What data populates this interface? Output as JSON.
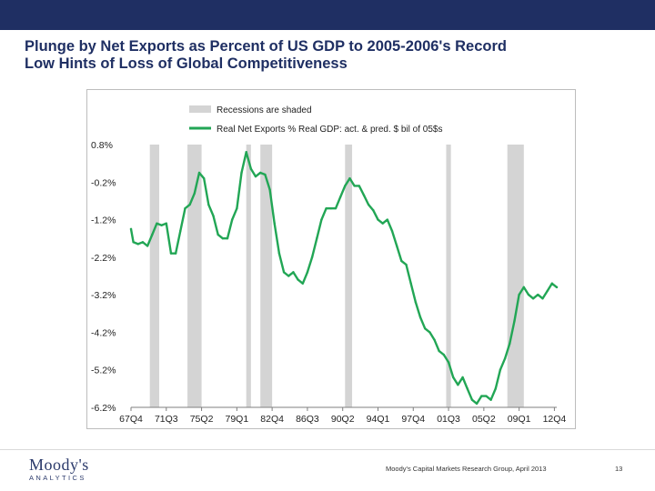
{
  "header": {
    "title_line1": "Plunge by Net Exports as Percent of US GDP to 2005-2006's Record",
    "title_line2": "Low Hints of Loss of Global Competitiveness"
  },
  "footer": {
    "logo_main": "Moody's",
    "logo_sub": "ANALYTICS",
    "source": "Moody's Capital Markets Research Group, April 2013",
    "page": "13"
  },
  "colors": {
    "brand_navy": "#1f2f63",
    "series_green": "#22a655",
    "recession_gray": "#d4d4d4"
  },
  "chart_data": {
    "type": "line",
    "title": "Plunge by Net Exports as Percent of US GDP to 2005-2006's Record Low Hints of Loss of Global Competitiveness",
    "xlabel": "",
    "ylabel": "",
    "x_domain": [
      1967.75,
      2013.0
    ],
    "ylim": [
      -6.2,
      0.8
    ],
    "yticks": [
      0.8,
      -0.2,
      -1.2,
      -2.2,
      -3.2,
      -4.2,
      -5.2,
      -6.2
    ],
    "ytick_labels": [
      "0.8%",
      "-0.2%",
      "-1.2%",
      "-2.2%",
      "-3.2%",
      "-4.2%",
      "-5.2%",
      "-6.2%"
    ],
    "xticks": [
      {
        "label": "67Q4",
        "x": 1967.75
      },
      {
        "label": "71Q3",
        "x": 1971.5
      },
      {
        "label": "75Q2",
        "x": 1975.25
      },
      {
        "label": "79Q1",
        "x": 1979.0
      },
      {
        "label": "82Q4",
        "x": 1982.75
      },
      {
        "label": "86Q3",
        "x": 1986.5
      },
      {
        "label": "90Q2",
        "x": 1990.25
      },
      {
        "label": "94Q1",
        "x": 1994.0
      },
      {
        "label": "97Q4",
        "x": 1997.75
      },
      {
        "label": "01Q3",
        "x": 2001.5
      },
      {
        "label": "05Q2",
        "x": 2005.25
      },
      {
        "label": "09Q1",
        "x": 2009.0
      },
      {
        "label": "12Q4",
        "x": 2012.75
      }
    ],
    "legend": [
      {
        "label": "Recessions are shaded",
        "kind": "band"
      },
      {
        "label": "Real Net Exports % Real GDP: act. & pred. $ bil of 05$s",
        "kind": "line"
      }
    ],
    "legend_position": "top-center",
    "recessions": [
      {
        "start": 1969.75,
        "end": 1970.75
      },
      {
        "start": 1973.75,
        "end": 1975.25
      },
      {
        "start": 1980.0,
        "end": 1980.5
      },
      {
        "start": 1981.5,
        "end": 1982.75
      },
      {
        "start": 1990.5,
        "end": 1991.25
      },
      {
        "start": 2001.25,
        "end": 2001.75
      },
      {
        "start": 2007.75,
        "end": 2009.5
      }
    ],
    "series": [
      {
        "name": "Real Net Exports % Real GDP: act. & pred. $ bil of 05$s",
        "x": [
          1967.75,
          1968.0,
          1968.5,
          1969.0,
          1969.5,
          1970.0,
          1970.5,
          1971.0,
          1971.5,
          1972.0,
          1972.5,
          1973.0,
          1973.5,
          1974.0,
          1974.5,
          1975.0,
          1975.5,
          1976.0,
          1976.5,
          1977.0,
          1977.5,
          1978.0,
          1978.5,
          1979.0,
          1979.5,
          1980.0,
          1980.5,
          1981.0,
          1981.5,
          1982.0,
          1982.5,
          1983.0,
          1983.5,
          1984.0,
          1984.5,
          1985.0,
          1985.5,
          1986.0,
          1986.5,
          1987.0,
          1987.5,
          1988.0,
          1988.5,
          1989.0,
          1989.5,
          1990.0,
          1990.5,
          1991.0,
          1991.5,
          1992.0,
          1992.5,
          1993.0,
          1993.5,
          1994.0,
          1994.5,
          1995.0,
          1995.5,
          1996.0,
          1996.5,
          1997.0,
          1997.5,
          1998.0,
          1998.5,
          1999.0,
          1999.5,
          2000.0,
          2000.5,
          2001.0,
          2001.5,
          2002.0,
          2002.5,
          2003.0,
          2003.5,
          2004.0,
          2004.5,
          2005.0,
          2005.5,
          2006.0,
          2006.5,
          2007.0,
          2007.5,
          2008.0,
          2008.5,
          2009.0,
          2009.5,
          2010.0,
          2010.5,
          2011.0,
          2011.5,
          2012.0,
          2012.5,
          2013.0
        ],
        "y": [
          -1.45,
          -1.8,
          -1.85,
          -1.8,
          -1.9,
          -1.6,
          -1.3,
          -1.35,
          -1.3,
          -2.1,
          -2.1,
          -1.5,
          -0.9,
          -0.8,
          -0.5,
          0.05,
          -0.1,
          -0.8,
          -1.1,
          -1.6,
          -1.7,
          -1.7,
          -1.2,
          -0.9,
          0.05,
          0.6,
          0.15,
          -0.05,
          0.05,
          0.0,
          -0.4,
          -1.3,
          -2.1,
          -2.6,
          -2.7,
          -2.6,
          -2.8,
          -2.9,
          -2.6,
          -2.2,
          -1.7,
          -1.2,
          -0.9,
          -0.9,
          -0.9,
          -0.6,
          -0.3,
          -0.1,
          -0.3,
          -0.3,
          -0.55,
          -0.8,
          -0.95,
          -1.2,
          -1.3,
          -1.2,
          -1.5,
          -1.9,
          -2.3,
          -2.4,
          -2.9,
          -3.4,
          -3.8,
          -4.1,
          -4.2,
          -4.4,
          -4.7,
          -4.8,
          -5.0,
          -5.4,
          -5.6,
          -5.4,
          -5.7,
          -6.0,
          -6.1,
          -5.9,
          -5.9,
          -6.0,
          -5.7,
          -5.2,
          -4.9,
          -4.5,
          -3.9,
          -3.2,
          -3.0,
          -3.2,
          -3.3,
          -3.2,
          -3.3,
          -3.1,
          -2.9,
          -3.0
        ]
      }
    ]
  }
}
